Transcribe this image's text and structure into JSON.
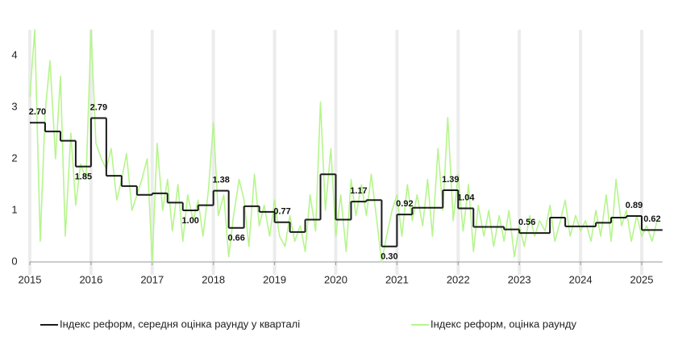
{
  "chart_data": {
    "type": "line",
    "xlim": [
      2015,
      2025.34
    ],
    "ylim": [
      0,
      4.5
    ],
    "xticks": [
      2015,
      2016,
      2017,
      2018,
      2019,
      2020,
      2021,
      2022,
      2023,
      2024,
      2025
    ],
    "yticks": [
      0,
      1,
      2,
      3,
      4
    ],
    "grid": true,
    "legend": "bottom",
    "series": [
      {
        "name": "Індекс реформ, середня оцінка раунду у кварталі",
        "color": "#1a1a1a",
        "style": "step",
        "x": [
          2015,
          2015.25,
          2015.5,
          2015.75,
          2016,
          2016.25,
          2016.5,
          2016.75,
          2017,
          2017.25,
          2017.5,
          2017.75,
          2018,
          2018.25,
          2018.5,
          2018.75,
          2019,
          2019.25,
          2019.5,
          2019.75,
          2020,
          2020.25,
          2020.5,
          2020.75,
          2021,
          2021.25,
          2021.5,
          2021.75,
          2022,
          2022.25,
          2022.5,
          2022.75,
          2023,
          2023.25,
          2023.5,
          2023.75,
          2024,
          2024.25,
          2024.5,
          2024.75,
          2025
        ],
        "values": [
          2.7,
          2.53,
          2.35,
          1.85,
          2.79,
          1.67,
          1.47,
          1.3,
          1.33,
          1.15,
          1.0,
          1.1,
          1.38,
          0.66,
          1.08,
          0.97,
          0.77,
          0.58,
          0.82,
          1.7,
          0.82,
          1.17,
          1.2,
          0.3,
          0.92,
          1.05,
          1.05,
          1.39,
          1.04,
          0.68,
          0.68,
          0.63,
          0.56,
          0.56,
          0.86,
          0.69,
          0.69,
          0.76,
          0.86,
          0.89,
          0.62
        ],
        "value_labels": [
          "2.70",
          null,
          null,
          "1.85",
          "2.79",
          null,
          null,
          null,
          null,
          null,
          "1.00",
          null,
          "1.38",
          "0.66",
          null,
          null,
          "0.77",
          null,
          null,
          null,
          null,
          "1.17",
          null,
          "0.30",
          "0.92",
          null,
          null,
          "1.39",
          "1.04",
          null,
          null,
          null,
          "0.56",
          null,
          null,
          null,
          null,
          null,
          null,
          "0.89",
          "0.62"
        ]
      },
      {
        "name": "Індекс реформ, оцінка раунду",
        "color": "#b6f58c",
        "x": [
          2015.0,
          2015.08,
          2015.17,
          2015.25,
          2015.33,
          2015.42,
          2015.5,
          2015.58,
          2015.67,
          2015.75,
          2015.83,
          2015.92,
          2016.0,
          2016.08,
          2016.17,
          2016.25,
          2016.33,
          2016.42,
          2016.5,
          2016.58,
          2016.67,
          2016.75,
          2016.83,
          2016.92,
          2017.0,
          2017.08,
          2017.17,
          2017.25,
          2017.33,
          2017.42,
          2017.5,
          2017.58,
          2017.67,
          2017.75,
          2017.83,
          2017.92,
          2018.0,
          2018.08,
          2018.17,
          2018.25,
          2018.33,
          2018.42,
          2018.5,
          2018.58,
          2018.67,
          2018.75,
          2018.83,
          2018.92,
          2019.0,
          2019.08,
          2019.17,
          2019.25,
          2019.33,
          2019.42,
          2019.5,
          2019.58,
          2019.67,
          2019.75,
          2019.83,
          2019.92,
          2020.0,
          2020.08,
          2020.17,
          2020.25,
          2020.33,
          2020.42,
          2020.5,
          2020.58,
          2020.67,
          2020.75,
          2020.83,
          2020.92,
          2021.0,
          2021.08,
          2021.17,
          2021.25,
          2021.33,
          2021.42,
          2021.5,
          2021.58,
          2021.67,
          2021.75,
          2021.83,
          2021.92,
          2022.0,
          2022.08,
          2022.17,
          2022.25,
          2022.33,
          2022.42,
          2022.5,
          2022.58,
          2022.67,
          2022.75,
          2022.83,
          2022.92,
          2023.0,
          2023.08,
          2023.17,
          2023.25,
          2023.33,
          2023.42,
          2023.5,
          2023.58,
          2023.67,
          2023.75,
          2023.83,
          2023.92,
          2024.0,
          2024.08,
          2024.17,
          2024.25,
          2024.33,
          2024.42,
          2024.5,
          2024.58,
          2024.67,
          2024.75,
          2024.83,
          2024.92,
          2025.0,
          2025.08,
          2025.17,
          2025.25
        ],
        "values": [
          3.2,
          4.5,
          0.4,
          2.9,
          3.9,
          2.0,
          3.6,
          0.5,
          2.5,
          1.1,
          1.9,
          1.6,
          4.5,
          2.3,
          2.0,
          1.8,
          2.2,
          1.2,
          1.6,
          2.1,
          1.0,
          1.3,
          1.6,
          2.0,
          0.0,
          2.3,
          1.0,
          1.6,
          0.6,
          1.5,
          0.4,
          1.3,
          0.8,
          1.2,
          0.5,
          1.4,
          2.7,
          0.9,
          1.3,
          0.1,
          0.9,
          1.6,
          1.2,
          0.3,
          1.7,
          0.7,
          1.1,
          0.5,
          1.2,
          0.5,
          0.3,
          0.9,
          0.4,
          0.7,
          0.2,
          1.3,
          0.6,
          3.1,
          1.0,
          2.2,
          0.5,
          1.3,
          0.2,
          1.6,
          0.9,
          1.5,
          0.9,
          1.7,
          0.8,
          0.0,
          0.5,
          1.0,
          1.3,
          0.5,
          1.5,
          0.8,
          1.3,
          0.7,
          1.6,
          0.5,
          2.2,
          1.0,
          2.8,
          0.8,
          1.7,
          0.6,
          1.5,
          0.2,
          1.1,
          0.5,
          1.0,
          0.3,
          0.9,
          0.4,
          1.0,
          0.1,
          0.7,
          0.3,
          0.9,
          0.5,
          0.8,
          0.6,
          1.1,
          0.4,
          0.8,
          1.2,
          0.5,
          0.9,
          0.6,
          0.8,
          0.4,
          1.0,
          0.5,
          1.3,
          0.4,
          1.6,
          0.7,
          1.0,
          0.4,
          0.9,
          0.5,
          0.7,
          0.4,
          0.8
        ]
      }
    ]
  }
}
